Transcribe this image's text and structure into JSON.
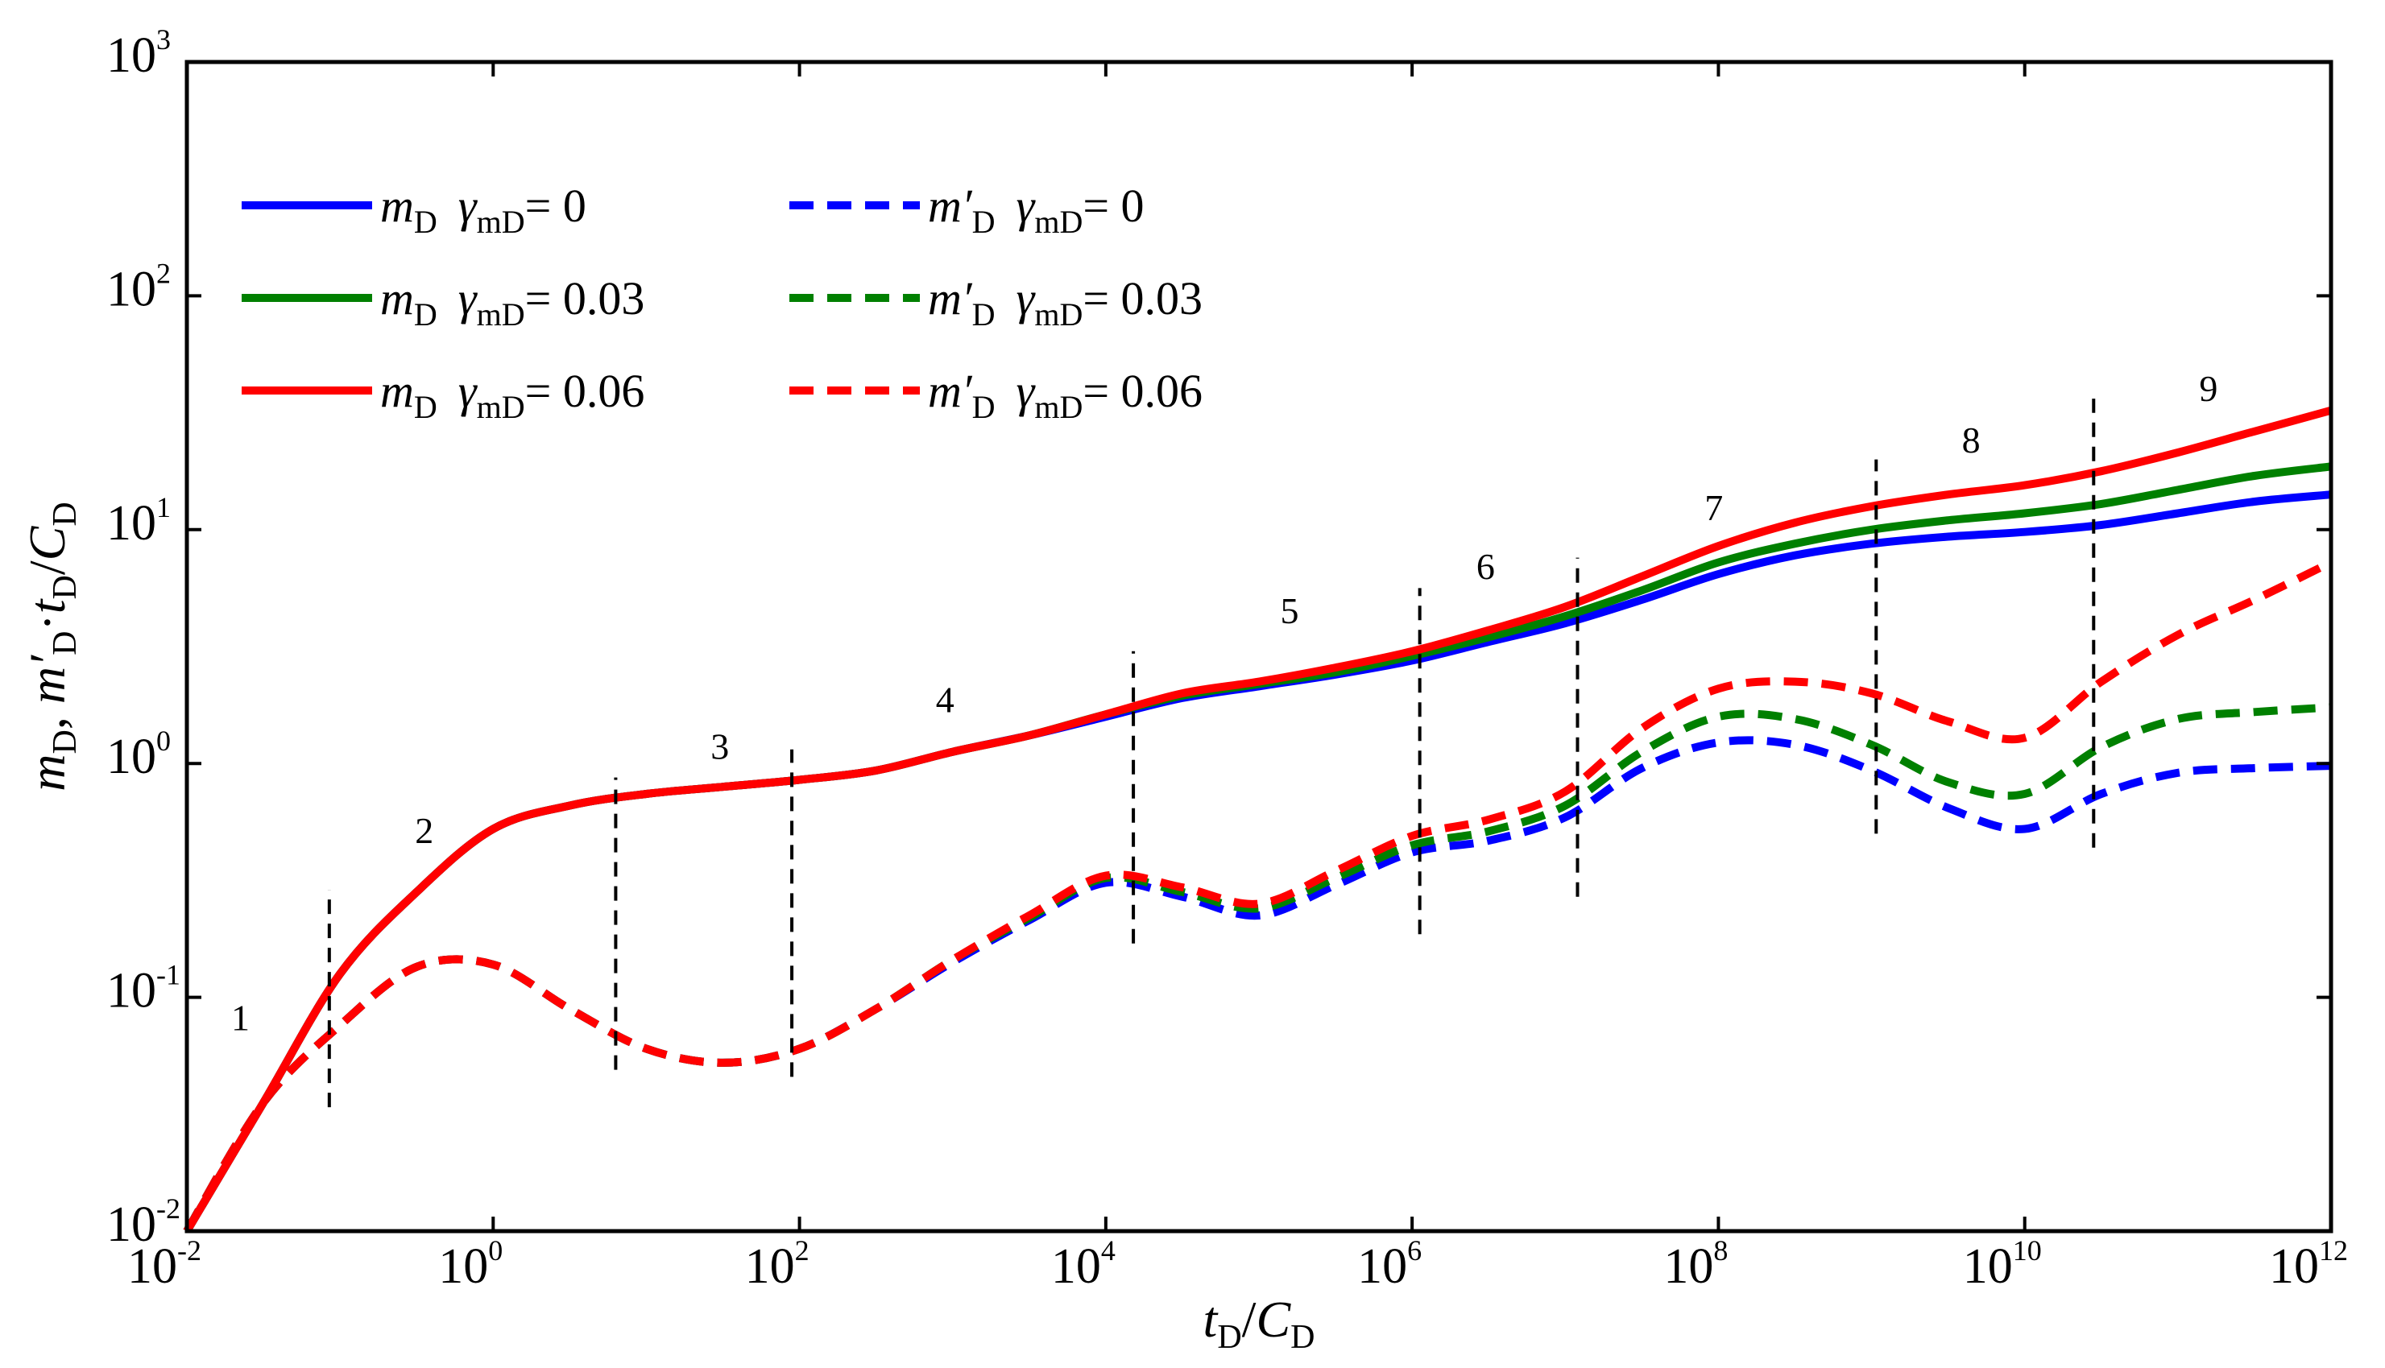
{
  "chart_data": {
    "type": "line",
    "xscale": "log",
    "yscale": "log",
    "xlim": [
      0.01,
      1000000000000.0
    ],
    "ylim": [
      0.01,
      1000
    ],
    "xlabel": {
      "main1": "t",
      "sub1": "D",
      "slash": "/",
      "main2": "C",
      "sub2": "D"
    },
    "ylabel": {
      "m1": "m",
      "s1": "D",
      "comma": ", ",
      "m2": "m′",
      "s2": "D",
      "dot": "·",
      "m3": "t",
      "s3": "D",
      "slash": "/",
      "m4": "C",
      "s4": "D"
    },
    "x_ticks": [
      {
        "base": "10",
        "exp": "-2"
      },
      {
        "base": "10",
        "exp": "0"
      },
      {
        "base": "10",
        "exp": "2"
      },
      {
        "base": "10",
        "exp": "4"
      },
      {
        "base": "10",
        "exp": "6"
      },
      {
        "base": "10",
        "exp": "8"
      },
      {
        "base": "10",
        "exp": "10"
      },
      {
        "base": "10",
        "exp": "12"
      }
    ],
    "y_ticks": [
      {
        "base": "10",
        "exp": "-2"
      },
      {
        "base": "10",
        "exp": "-1"
      },
      {
        "base": "10",
        "exp": "0"
      },
      {
        "base": "10",
        "exp": "1"
      },
      {
        "base": "10",
        "exp": "2"
      },
      {
        "base": "10",
        "exp": "3"
      }
    ],
    "series": [
      {
        "name": "m_D γ_mD = 0",
        "kind": "pressure",
        "style": "solid",
        "color": "#0000ff",
        "legend": {
          "m": "m",
          "msub": "D",
          "g": "γ",
          "gsub": "mD",
          "val": "= 0"
        },
        "points": [
          [
            -2,
            -2
          ],
          [
            -1.5,
            -1.45
          ],
          [
            -1,
            -0.9
          ],
          [
            -0.5,
            -0.55
          ],
          [
            0,
            -0.28
          ],
          [
            0.5,
            -0.18
          ],
          [
            1,
            -0.13
          ],
          [
            1.5,
            -0.1
          ],
          [
            2,
            -0.07
          ],
          [
            2.5,
            -0.03
          ],
          [
            3,
            0.05
          ],
          [
            3.5,
            0.12
          ],
          [
            4,
            0.2
          ],
          [
            4.5,
            0.28
          ],
          [
            5,
            0.33
          ],
          [
            5.5,
            0.38
          ],
          [
            6,
            0.44
          ],
          [
            6.5,
            0.52
          ],
          [
            7,
            0.6
          ],
          [
            7.5,
            0.7
          ],
          [
            8,
            0.81
          ],
          [
            8.5,
            0.89
          ],
          [
            9,
            0.94
          ],
          [
            9.5,
            0.97
          ],
          [
            10,
            0.99
          ],
          [
            10.5,
            1.02
          ],
          [
            11,
            1.07
          ],
          [
            11.5,
            1.12
          ],
          [
            12,
            1.15
          ]
        ]
      },
      {
        "name": "m_D γ_mD = 0.03",
        "kind": "pressure",
        "style": "solid",
        "color": "#008000",
        "legend": {
          "m": "m",
          "msub": "D",
          "g": "γ",
          "gsub": "mD",
          "val": "= 0.03"
        },
        "points": [
          [
            -2,
            -2
          ],
          [
            -1.5,
            -1.45
          ],
          [
            -1,
            -0.9
          ],
          [
            -0.5,
            -0.55
          ],
          [
            0,
            -0.28
          ],
          [
            0.5,
            -0.18
          ],
          [
            1,
            -0.13
          ],
          [
            1.5,
            -0.1
          ],
          [
            2,
            -0.07
          ],
          [
            2.5,
            -0.03
          ],
          [
            3,
            0.05
          ],
          [
            3.5,
            0.12
          ],
          [
            4,
            0.21
          ],
          [
            4.5,
            0.29
          ],
          [
            5,
            0.34
          ],
          [
            5.5,
            0.39
          ],
          [
            6,
            0.46
          ],
          [
            6.5,
            0.54
          ],
          [
            7,
            0.63
          ],
          [
            7.5,
            0.74
          ],
          [
            8,
            0.86
          ],
          [
            8.5,
            0.94
          ],
          [
            9,
            1.0
          ],
          [
            9.5,
            1.04
          ],
          [
            10,
            1.07
          ],
          [
            10.5,
            1.11
          ],
          [
            11,
            1.17
          ],
          [
            11.5,
            1.23
          ],
          [
            12,
            1.27
          ]
        ]
      },
      {
        "name": "m_D γ_mD = 0.06",
        "kind": "pressure",
        "style": "solid",
        "color": "#ff0000",
        "legend": {
          "m": "m",
          "msub": "D",
          "g": "γ",
          "gsub": "mD",
          "val": "= 0.06"
        },
        "points": [
          [
            -2,
            -2
          ],
          [
            -1.5,
            -1.45
          ],
          [
            -1,
            -0.9
          ],
          [
            -0.5,
            -0.55
          ],
          [
            0,
            -0.28
          ],
          [
            0.5,
            -0.18
          ],
          [
            1,
            -0.13
          ],
          [
            1.5,
            -0.1
          ],
          [
            2,
            -0.07
          ],
          [
            2.5,
            -0.03
          ],
          [
            3,
            0.05
          ],
          [
            3.5,
            0.12
          ],
          [
            4,
            0.21
          ],
          [
            4.5,
            0.3
          ],
          [
            5,
            0.35
          ],
          [
            5.5,
            0.41
          ],
          [
            6,
            0.48
          ],
          [
            6.5,
            0.57
          ],
          [
            7,
            0.67
          ],
          [
            7.5,
            0.8
          ],
          [
            8,
            0.93
          ],
          [
            8.5,
            1.03
          ],
          [
            9,
            1.1
          ],
          [
            9.5,
            1.15
          ],
          [
            10,
            1.19
          ],
          [
            10.5,
            1.25
          ],
          [
            11,
            1.33
          ],
          [
            11.5,
            1.42
          ],
          [
            12,
            1.51
          ]
        ]
      },
      {
        "name": "m′_D γ_mD = 0",
        "kind": "derivative",
        "style": "dashed",
        "color": "#0000ff",
        "legend": {
          "m": "m′",
          "msub": "D",
          "g": "γ",
          "gsub": "mD",
          "val": "= 0"
        },
        "points": [
          [
            -2,
            -2
          ],
          [
            -1.5,
            -1.45
          ],
          [
            -1,
            -1.12
          ],
          [
            -0.5,
            -0.87
          ],
          [
            0,
            -0.86
          ],
          [
            0.5,
            -1.05
          ],
          [
            1,
            -1.22
          ],
          [
            1.5,
            -1.28
          ],
          [
            2,
            -1.22
          ],
          [
            2.5,
            -1.05
          ],
          [
            3,
            -0.85
          ],
          [
            3.5,
            -0.67
          ],
          [
            4,
            -0.51
          ],
          [
            4.5,
            -0.57
          ],
          [
            5,
            -0.65
          ],
          [
            5.5,
            -0.52
          ],
          [
            6,
            -0.38
          ],
          [
            6.5,
            -0.33
          ],
          [
            7,
            -0.23
          ],
          [
            7.5,
            -0.02
          ],
          [
            8,
            0.09
          ],
          [
            8.5,
            0.08
          ],
          [
            9,
            -0.03
          ],
          [
            9.5,
            -0.19
          ],
          [
            10,
            -0.28
          ],
          [
            10.5,
            -0.13
          ],
          [
            11,
            -0.04
          ],
          [
            11.5,
            -0.02
          ],
          [
            12,
            -0.01
          ]
        ]
      },
      {
        "name": "m′_D γ_mD = 0.03",
        "kind": "derivative",
        "style": "dashed",
        "color": "#008000",
        "legend": {
          "m": "m′",
          "msub": "D",
          "g": "γ",
          "gsub": "mD",
          "val": "= 0.03"
        },
        "points": [
          [
            -2,
            -2
          ],
          [
            -1.5,
            -1.45
          ],
          [
            -1,
            -1.12
          ],
          [
            -0.5,
            -0.87
          ],
          [
            0,
            -0.86
          ],
          [
            0.5,
            -1.05
          ],
          [
            1,
            -1.22
          ],
          [
            1.5,
            -1.28
          ],
          [
            2,
            -1.22
          ],
          [
            2.5,
            -1.05
          ],
          [
            3,
            -0.84
          ],
          [
            3.5,
            -0.66
          ],
          [
            4,
            -0.49
          ],
          [
            4.5,
            -0.55
          ],
          [
            5,
            -0.62
          ],
          [
            5.5,
            -0.49
          ],
          [
            6,
            -0.35
          ],
          [
            6.5,
            -0.29
          ],
          [
            7,
            -0.18
          ],
          [
            7.5,
            0.05
          ],
          [
            8,
            0.2
          ],
          [
            8.5,
            0.19
          ],
          [
            9,
            0.08
          ],
          [
            9.5,
            -0.08
          ],
          [
            10,
            -0.13
          ],
          [
            10.5,
            0.07
          ],
          [
            11,
            0.19
          ],
          [
            11.5,
            0.22
          ],
          [
            12,
            0.24
          ]
        ]
      },
      {
        "name": "m′_D γ_mD = 0.06",
        "kind": "derivative",
        "style": "dashed",
        "color": "#ff0000",
        "legend": {
          "m": "m′",
          "msub": "D",
          "g": "γ",
          "gsub": "mD",
          "val": "= 0.06"
        },
        "points": [
          [
            -2,
            -2
          ],
          [
            -1.5,
            -1.45
          ],
          [
            -1,
            -1.12
          ],
          [
            -0.5,
            -0.87
          ],
          [
            0,
            -0.86
          ],
          [
            0.5,
            -1.05
          ],
          [
            1,
            -1.22
          ],
          [
            1.5,
            -1.28
          ],
          [
            2,
            -1.22
          ],
          [
            2.5,
            -1.05
          ],
          [
            3,
            -0.84
          ],
          [
            3.5,
            -0.65
          ],
          [
            4,
            -0.48
          ],
          [
            4.5,
            -0.53
          ],
          [
            5,
            -0.6
          ],
          [
            5.5,
            -0.46
          ],
          [
            6,
            -0.31
          ],
          [
            6.5,
            -0.24
          ],
          [
            7,
            -0.12
          ],
          [
            7.5,
            0.15
          ],
          [
            8,
            0.32
          ],
          [
            8.5,
            0.35
          ],
          [
            9,
            0.3
          ],
          [
            9.5,
            0.18
          ],
          [
            10,
            0.11
          ],
          [
            10.5,
            0.35
          ],
          [
            11,
            0.55
          ],
          [
            11.5,
            0.7
          ],
          [
            12,
            0.86
          ]
        ]
      }
    ],
    "flow_regimes": [
      "1",
      "2",
      "3",
      "4",
      "5",
      "6",
      "7",
      "8",
      "9"
    ],
    "region_labels": [
      {
        "text": "1",
        "x": -1.65,
        "y": -1.14
      },
      {
        "text": "2",
        "x": -0.45,
        "y": -0.34
      },
      {
        "text": "3",
        "x": 1.48,
        "y": 0.02
      },
      {
        "text": "4",
        "x": 2.95,
        "y": 0.22
      },
      {
        "text": "5",
        "x": 5.2,
        "y": 0.6
      },
      {
        "text": "6",
        "x": 6.48,
        "y": 0.79
      },
      {
        "text": "7",
        "x": 7.97,
        "y": 1.04
      },
      {
        "text": "8",
        "x": 9.65,
        "y": 1.33
      },
      {
        "text": "9",
        "x": 11.2,
        "y": 1.55
      }
    ],
    "dividers": [
      {
        "x": -1.07,
        "y_from": -1.47,
        "y_to": -0.54
      },
      {
        "x": 0.8,
        "y_from": -1.31,
        "y_to": -0.06
      },
      {
        "x": 1.95,
        "y_from": -1.34,
        "y_to": 0.06
      },
      {
        "x": 4.18,
        "y_from": -0.77,
        "y_to": 0.48
      },
      {
        "x": 6.05,
        "y_from": -0.73,
        "y_to": 0.75
      },
      {
        "x": 7.08,
        "y_from": -0.57,
        "y_to": 0.88
      },
      {
        "x": 9.03,
        "y_from": -0.3,
        "y_to": 1.3
      },
      {
        "x": 10.45,
        "y_from": -0.36,
        "y_to": 1.56
      }
    ]
  }
}
